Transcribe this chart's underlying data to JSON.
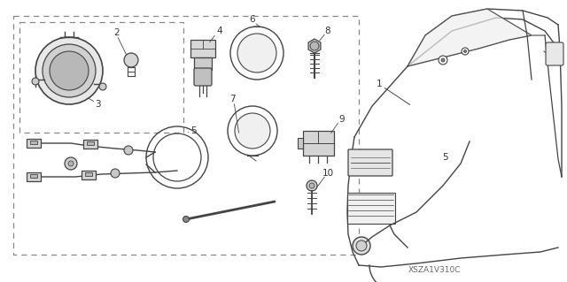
{
  "bg_color": "#ffffff",
  "line_color": "#444444",
  "dashed_color": "#888888",
  "watermark": "XSZA1V310C",
  "figsize": [
    6.4,
    3.19
  ],
  "dpi": 100
}
